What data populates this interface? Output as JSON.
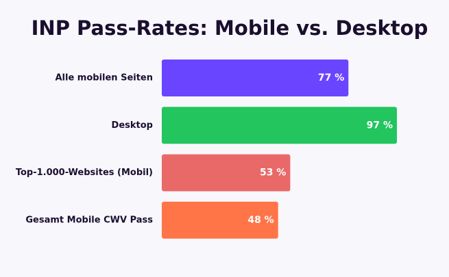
{
  "chart_data": {
    "type": "bar",
    "orientation": "horizontal",
    "title": "INP Pass-Rates: Mobile vs. Desktop",
    "categories": [
      "Alle mobilen Seiten",
      "Desktop",
      "Top-1.000-Websites (Mobil)",
      "Gesamt Mobile CWV Pass"
    ],
    "values": [
      77,
      97,
      53,
      48
    ],
    "value_labels": [
      "77 %",
      "97 %",
      "53 %",
      "48 %"
    ],
    "colors": [
      "#6a45ff",
      "#22c55e",
      "#e96868",
      "#ff7548"
    ]
  }
}
